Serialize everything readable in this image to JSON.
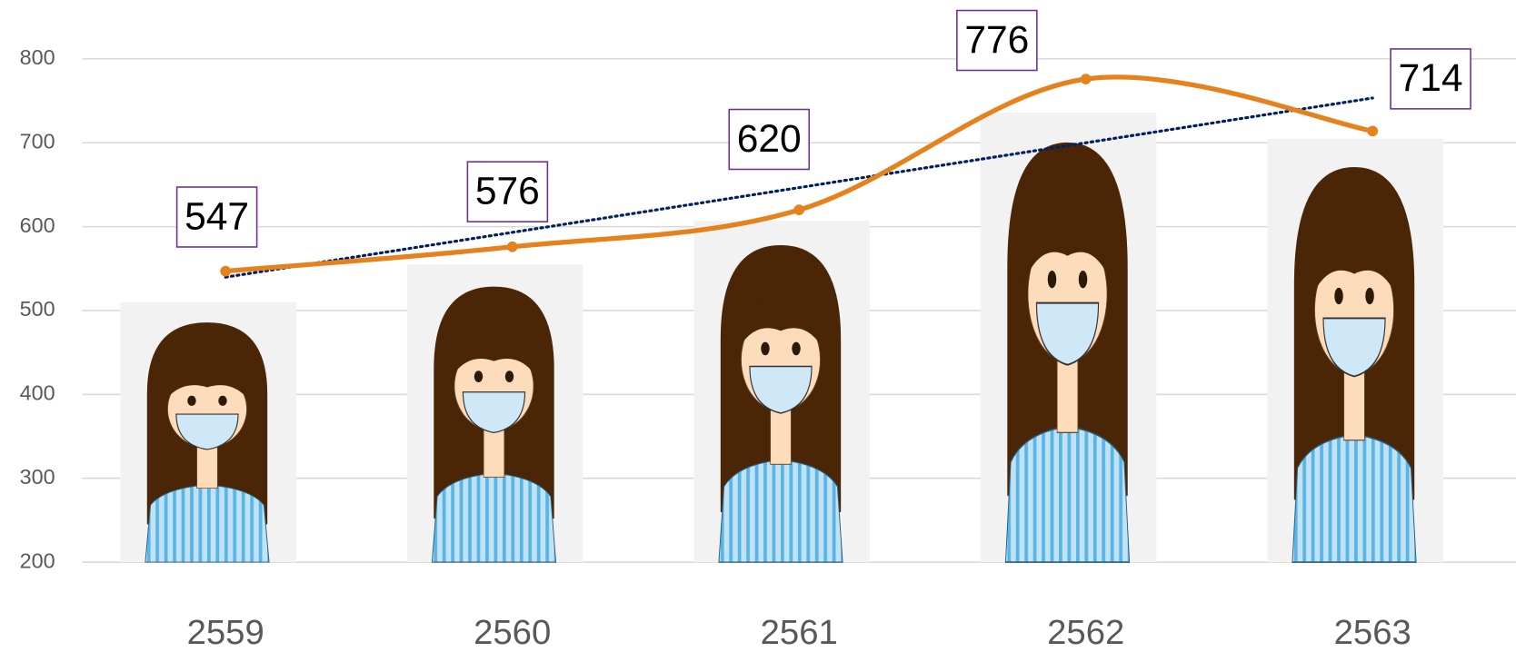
{
  "chart_data": {
    "type": "combo",
    "categories": [
      "2559",
      "2560",
      "2561",
      "2562",
      "2563"
    ],
    "series": [
      {
        "type": "bar",
        "color": "#f2f2f2",
        "values": [
          510,
          555,
          607,
          736,
          705
        ]
      },
      {
        "type": "line",
        "color": "#e5821e",
        "values": [
          547,
          576,
          620,
          776,
          714
        ],
        "smooth": true,
        "data_labels": true,
        "label_border_color": "#7030a0",
        "trendline": true,
        "trendline_color": "#002060"
      }
    ],
    "ylim": [
      200,
      800
    ],
    "yticks": [
      200,
      300,
      400,
      500,
      600,
      700,
      800
    ],
    "grid": true
  }
}
